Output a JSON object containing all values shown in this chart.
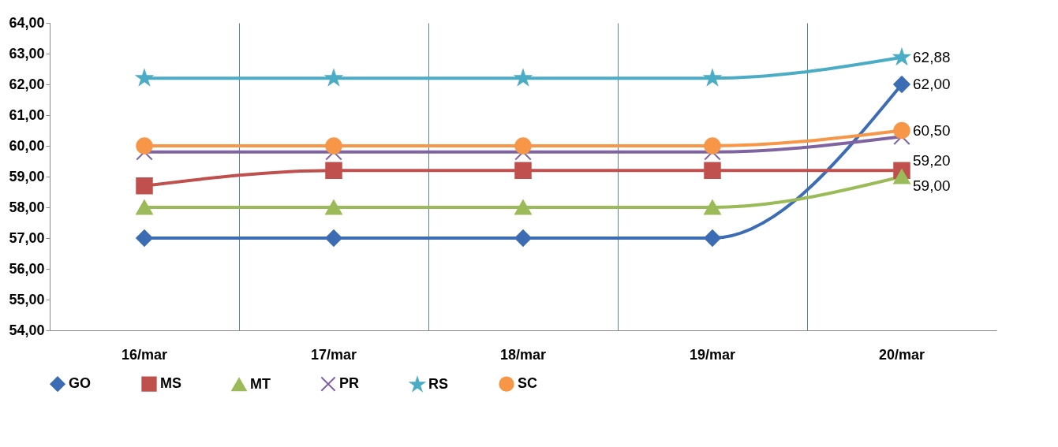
{
  "chart_data": {
    "type": "line",
    "categories": [
      "16/mar",
      "17/mar",
      "18/mar",
      "19/mar",
      "20/mar"
    ],
    "ylim": [
      54,
      64
    ],
    "yticks": [
      {
        "value": 54,
        "label": "54,00"
      },
      {
        "value": 55,
        "label": "55,00"
      },
      {
        "value": 56,
        "label": "56,00"
      },
      {
        "value": 57,
        "label": "57,00"
      },
      {
        "value": 58,
        "label": "58,00"
      },
      {
        "value": 59,
        "label": "59,00"
      },
      {
        "value": 60,
        "label": "60,00"
      },
      {
        "value": 61,
        "label": "61,00"
      },
      {
        "value": 62,
        "label": "62,00"
      },
      {
        "value": 63,
        "label": "63,00"
      },
      {
        "value": 64,
        "label": "64,00"
      }
    ],
    "grid": "x",
    "legend": "bottom",
    "series": [
      {
        "name": "GO",
        "color": "#3c6db4",
        "marker": "diamond",
        "values": [
          57,
          57,
          57,
          57,
          62
        ],
        "value_labels": [
          null,
          null,
          null,
          null,
          "62,00"
        ]
      },
      {
        "name": "MS",
        "color": "#c0504d",
        "marker": "square",
        "values": [
          58.7,
          59.2,
          59.2,
          59.2,
          59.2
        ],
        "value_labels": [
          null,
          null,
          null,
          null,
          "59,20"
        ]
      },
      {
        "name": "MT",
        "color": "#9bbb59",
        "marker": "triangle",
        "values": [
          58,
          58,
          58,
          58,
          59
        ],
        "value_labels": [
          null,
          null,
          null,
          null,
          "59,00"
        ]
      },
      {
        "name": "PR",
        "color": "#8064a2",
        "marker": "cross",
        "values": [
          59.8,
          59.8,
          59.8,
          59.8,
          60.3
        ]
      },
      {
        "name": "RS",
        "color": "#4bacc6",
        "marker": "star",
        "values": [
          62.2,
          62.2,
          62.2,
          62.2,
          62.88
        ],
        "value_labels": [
          null,
          null,
          null,
          null,
          "62,88"
        ]
      },
      {
        "name": "SC",
        "color": "#f79646",
        "marker": "circle",
        "values": [
          60,
          60,
          60,
          60,
          60.5
        ],
        "value_labels": [
          null,
          null,
          null,
          null,
          "60,50"
        ]
      }
    ]
  }
}
